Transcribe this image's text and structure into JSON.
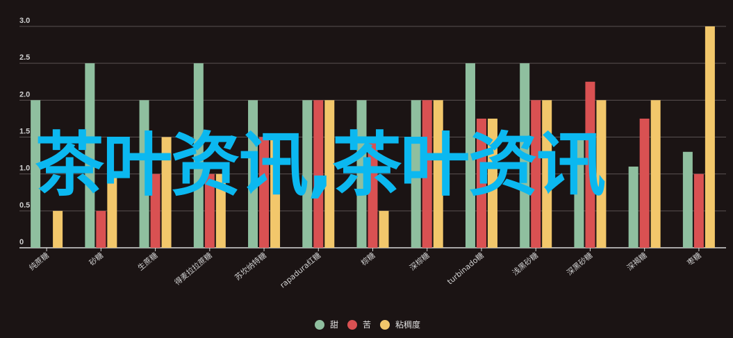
{
  "chart_data": {
    "type": "bar",
    "categories": [
      "纯蔗糖",
      "砂糖",
      "生蔗糖",
      "得麦拉拉蔗糖",
      "苏坎纳特糖",
      "rapadura红糖",
      "棕糖",
      "深棕糖",
      "turbinado糖",
      "浅黑砂糖",
      "深黑砂糖",
      "深褐糖",
      "枣糖"
    ],
    "series": [
      {
        "name": "甜",
        "color": "#8fbf9f",
        "values": [
          2.0,
          2.5,
          2.0,
          2.5,
          2.0,
          2.0,
          2.0,
          2.0,
          2.5,
          2.5,
          1.5,
          1.1,
          1.3
        ]
      },
      {
        "name": "苦",
        "color": "#d95152",
        "values": [
          0,
          0.5,
          1.0,
          1.0,
          1.5,
          2.0,
          1.5,
          2.0,
          1.75,
          2.0,
          2.25,
          1.75,
          1.0
        ]
      },
      {
        "name": "粘稠度",
        "color": "#f2c76b",
        "values": [
          0.5,
          1.0,
          1.5,
          1.0,
          1.5,
          2.0,
          0.5,
          2.0,
          1.75,
          2.0,
          2.0,
          2.0,
          3.0
        ]
      }
    ],
    "yticks": [
      "0",
      "0.5",
      "1.0",
      "1.5",
      "2.0",
      "2.5",
      "3.0"
    ],
    "ylim": [
      0,
      3
    ],
    "legend_position": "bottom"
  },
  "watermark": "茶叶资讯,茶叶资讯"
}
